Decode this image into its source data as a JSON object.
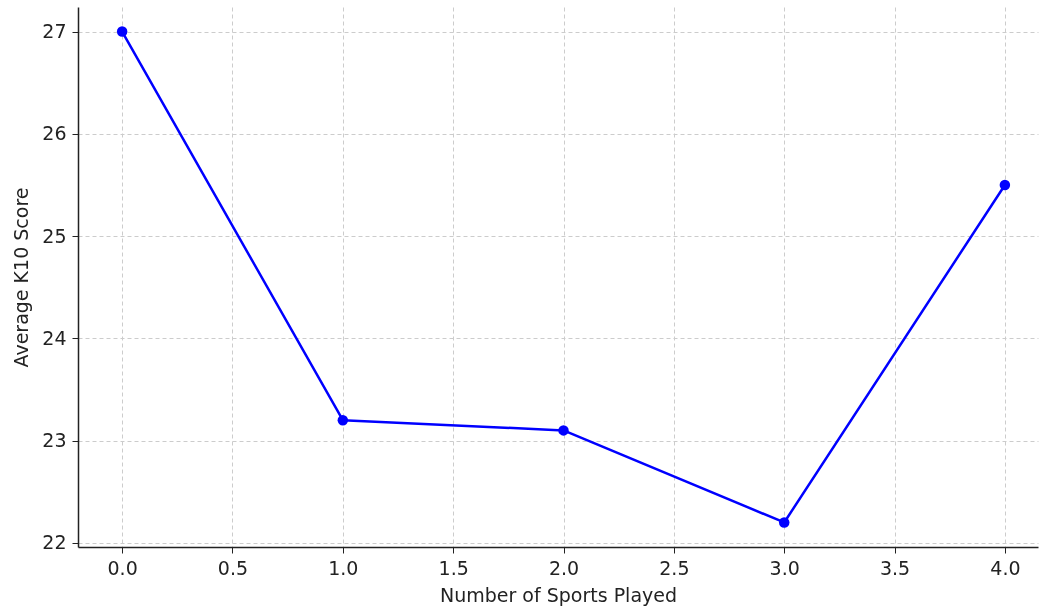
{
  "chart_data": {
    "type": "line",
    "xlabel": "Number of Sports Played",
    "ylabel": "Average K10 Score",
    "x": [
      0,
      1,
      2,
      3,
      4
    ],
    "series": [
      {
        "color": "#0000ff",
        "values": [
          27,
          23.2,
          23.1,
          22.2,
          25.5
        ]
      }
    ],
    "xlim": [
      -0.2,
      4.15
    ],
    "ylim": [
      21.96,
      27.24
    ],
    "xticks": [
      {
        "value": 0,
        "label": "0.0"
      },
      0.5,
      {
        "value": 1,
        "label": "1.0"
      },
      1.5,
      {
        "value": 2,
        "label": "2.0"
      },
      2.5,
      {
        "value": 3,
        "label": "3.0"
      },
      3.5,
      {
        "value": 4,
        "label": "4.0"
      }
    ],
    "yticks": [
      22,
      23,
      24,
      25,
      26,
      27
    ],
    "grid": true,
    "marker": "circle",
    "line_style": "solid"
  }
}
